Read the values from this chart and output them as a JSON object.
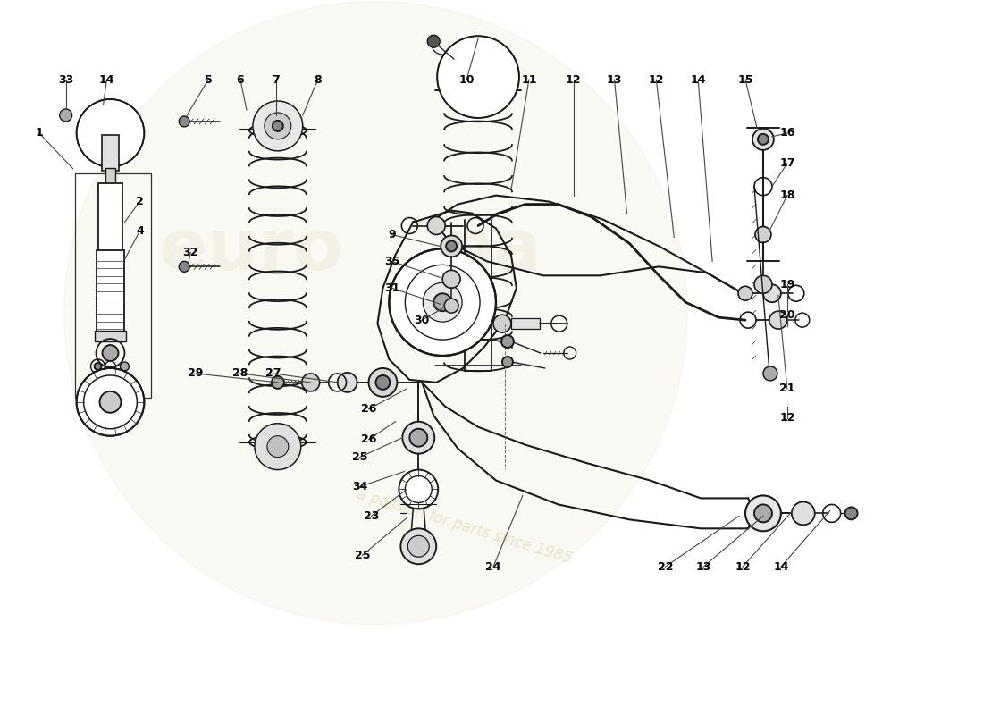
{
  "bg_color": "#ffffff",
  "line_color": "#1a1a1a",
  "label_color": "#000000",
  "fig_width": 11.0,
  "fig_height": 8.0,
  "dpi": 100,
  "watermark_text": "a passion for parts since 1985"
}
